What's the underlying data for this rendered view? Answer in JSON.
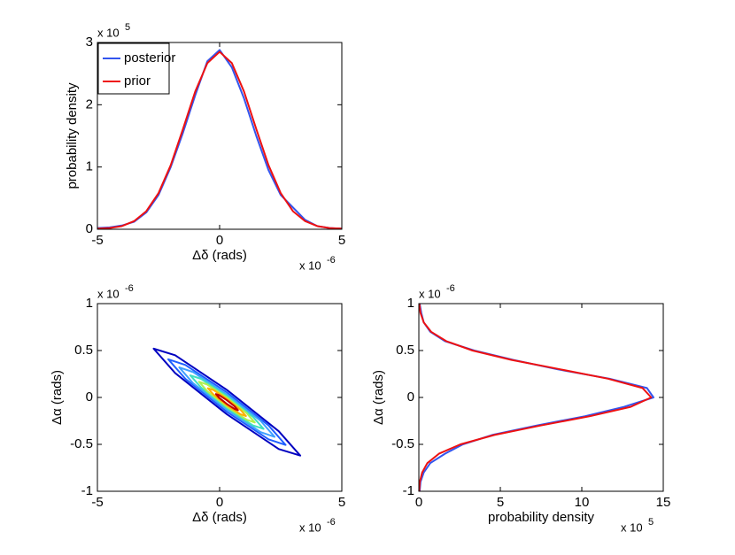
{
  "chart_data": [
    {
      "type": "line",
      "xlabel": "Δδ (rads)",
      "ylabel": "probability density",
      "x_multiplier": {
        "base": "x 10",
        "exponent": "-6"
      },
      "y_multiplier": {
        "base": "x 10",
        "exponent": "5"
      },
      "x": [
        -5,
        -4.5,
        -4,
        -3.5,
        -3,
        -2.5,
        -2,
        -1.5,
        -1,
        -0.5,
        0,
        0.5,
        1,
        1.5,
        2,
        2.5,
        3,
        3.5,
        4,
        4.5,
        5
      ],
      "series": [
        {
          "name": "posterior",
          "color": "#3355ee",
          "values": [
            0.02,
            0.03,
            0.06,
            0.12,
            0.27,
            0.55,
            1.0,
            1.55,
            2.15,
            2.7,
            2.88,
            2.6,
            2.1,
            1.5,
            0.95,
            0.55,
            0.35,
            0.15,
            0.05,
            0.02,
            0.01
          ]
        },
        {
          "name": "prior",
          "color": "#ee1111",
          "values": [
            0.01,
            0.02,
            0.05,
            0.13,
            0.29,
            0.58,
            1.03,
            1.61,
            2.21,
            2.67,
            2.85,
            2.67,
            2.21,
            1.61,
            1.03,
            0.58,
            0.29,
            0.13,
            0.05,
            0.02,
            0.01
          ]
        }
      ],
      "xlim": [
        -5,
        5
      ],
      "xticks": [
        -5,
        0,
        5
      ],
      "ylim": [
        0,
        3
      ],
      "yticks": [
        0,
        1,
        2,
        3
      ],
      "legend": "upper left"
    },
    {
      "type": "contour",
      "xlabel": "Δδ (rads)",
      "ylabel": "Δα (rads)",
      "x_multiplier": {
        "base": "x 10",
        "exponent": "-6"
      },
      "y_multiplier": {
        "base": "x 10",
        "exponent": "-6"
      },
      "contours": [
        {
          "color": "#0000c0",
          "x": [
            3.3,
            2.42,
            0.3,
            -1.82,
            -2.7,
            -1.82,
            0.3,
            2.42
          ],
          "y": [
            -0.62,
            -0.36,
            0.08,
            0.45,
            0.52,
            0.26,
            -0.18,
            -0.55
          ]
        },
        {
          "color": "#1f5fff",
          "x": [
            2.7,
            2.0,
            0.3,
            -1.4,
            -2.1,
            -1.4,
            0.3,
            2.0
          ],
          "y": [
            -0.506,
            -0.298,
            0.054,
            0.346,
            0.406,
            0.198,
            -0.154,
            -0.446
          ]
        },
        {
          "color": "#3fa0ff",
          "x": [
            2.25,
            1.68,
            0.3,
            -1.08,
            -1.65,
            -1.08,
            0.3,
            1.68
          ],
          "y": [
            -0.42,
            -0.25,
            0.03,
            0.27,
            0.32,
            0.15,
            -0.13,
            -0.37
          ]
        },
        {
          "color": "#40e0c0",
          "x": [
            1.8,
            1.36,
            0.3,
            -0.76,
            -1.2,
            -0.76,
            0.3,
            1.36
          ],
          "y": [
            -0.335,
            -0.206,
            0.015,
            0.198,
            0.235,
            0.106,
            -0.115,
            -0.298
          ]
        },
        {
          "color": "#b0f050",
          "x": [
            1.44,
            1.11,
            0.3,
            -0.51,
            -0.84,
            -0.51,
            0.3,
            1.11
          ],
          "y": [
            -0.267,
            -0.168,
            -0.001,
            0.138,
            0.167,
            0.068,
            -0.099,
            -0.238
          ]
        },
        {
          "color": "#ffb000",
          "x": [
            1.08,
            0.85,
            0.3,
            -0.25,
            -0.48,
            -0.25,
            0.3,
            0.85
          ],
          "y": [
            -0.198,
            -0.131,
            -0.016,
            0.079,
            0.098,
            0.031,
            -0.084,
            -0.179
          ]
        },
        {
          "color": "#c00000",
          "x": [
            0.75,
            0.62,
            0.3,
            -0.02,
            -0.15,
            -0.02,
            0.3,
            0.62
          ],
          "y": [
            -0.136,
            -0.096,
            -0.03,
            0.024,
            0.036,
            -0.004,
            -0.07,
            -0.124
          ]
        }
      ],
      "xlim": [
        -5,
        5
      ],
      "xticks": [
        -5,
        0,
        5
      ],
      "ylim": [
        -1,
        1
      ],
      "yticks": [
        -1,
        -0.5,
        0,
        0.5,
        1
      ]
    },
    {
      "type": "line",
      "orientation": "horizontal",
      "xlabel": "probability density",
      "ylabel": "Δα (rads)",
      "x_multiplier": {
        "base": "x 10",
        "exponent": "5"
      },
      "y_multiplier": {
        "base": "x 10",
        "exponent": "-6"
      },
      "y": [
        -1,
        -0.9,
        -0.8,
        -0.7,
        -0.6,
        -0.5,
        -0.4,
        -0.3,
        -0.2,
        -0.1,
        0,
        0.1,
        0.2,
        0.3,
        0.4,
        0.5,
        0.6,
        0.7,
        0.8,
        0.9,
        1
      ],
      "series": [
        {
          "name": "posterior",
          "color": "#3355ee",
          "values": [
            0.05,
            0.1,
            0.3,
            0.7,
            1.6,
            2.7,
            4.5,
            7.2,
            10.2,
            12.6,
            14.4,
            14.0,
            11.7,
            8.5,
            5.8,
            3.4,
            1.6,
            0.7,
            0.3,
            0.15,
            0.05
          ]
        },
        {
          "name": "prior",
          "color": "#ee1111",
          "values": [
            0.02,
            0.06,
            0.2,
            0.52,
            1.23,
            2.55,
            4.64,
            7.44,
            10.5,
            13.0,
            14.26,
            13.73,
            11.6,
            8.67,
            5.69,
            3.29,
            1.68,
            0.75,
            0.3,
            0.1,
            0.03
          ]
        }
      ],
      "xlim": [
        0,
        15
      ],
      "xticks": [
        0,
        5,
        10,
        15
      ],
      "ylim": [
        -1,
        1
      ],
      "yticks": [
        -1,
        -0.5,
        0,
        0.5,
        1
      ]
    }
  ]
}
